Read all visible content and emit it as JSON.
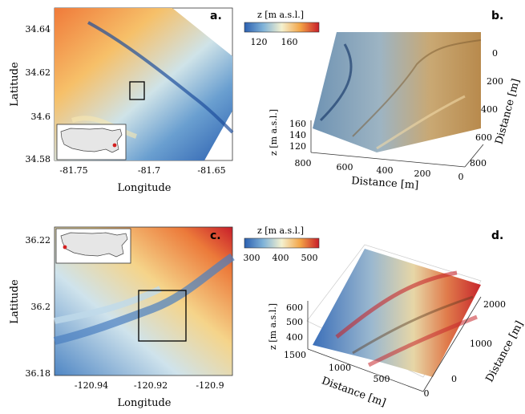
{
  "panels": [
    {
      "id": "a",
      "label": "a.",
      "xlabel": "Longitude",
      "ylabel": "Latitude",
      "xticks": [
        "-81.75",
        "-81.7",
        "-81.65"
      ],
      "yticks": [
        "34.64",
        "34.62",
        "34.6",
        "34.58"
      ]
    },
    {
      "id": "b",
      "label": "b.",
      "colorbar_label": "z [m a.s.l.]",
      "colorbar_ticks": [
        "120",
        "160"
      ],
      "zlabel": "z [m a.s.l.]",
      "zticks": [
        "160",
        "140",
        "120"
      ],
      "xlabel": "Distance [m]",
      "xticks": [
        "800",
        "600",
        "400",
        "200",
        "0"
      ],
      "ylabel": "Distance [m]",
      "yticks": [
        "0",
        "200",
        "400",
        "600",
        "800"
      ]
    },
    {
      "id": "c",
      "label": "c.",
      "xlabel": "Longitude",
      "ylabel": "Latitude",
      "xticks": [
        "-120.94",
        "-120.92",
        "-120.9"
      ],
      "yticks": [
        "36.22",
        "36.2",
        "36.18"
      ]
    },
    {
      "id": "d",
      "label": "d.",
      "colorbar_label": "z [m a.s.l.]",
      "colorbar_ticks": [
        "300",
        "400",
        "500"
      ],
      "zlabel": "z [m a.s.l.]",
      "zticks": [
        "600",
        "500",
        "400"
      ],
      "xlabel": "Distance [m]",
      "xticks": [
        "1500",
        "1000",
        "500",
        "0"
      ],
      "ylabel": "Distance [m]",
      "yticks": [
        "2000",
        "1000",
        "0"
      ]
    }
  ],
  "colors": {
    "low": "#2b5fb0",
    "mid": "#f2f2d0",
    "high": "#d8262b",
    "marker": "#d42020"
  }
}
